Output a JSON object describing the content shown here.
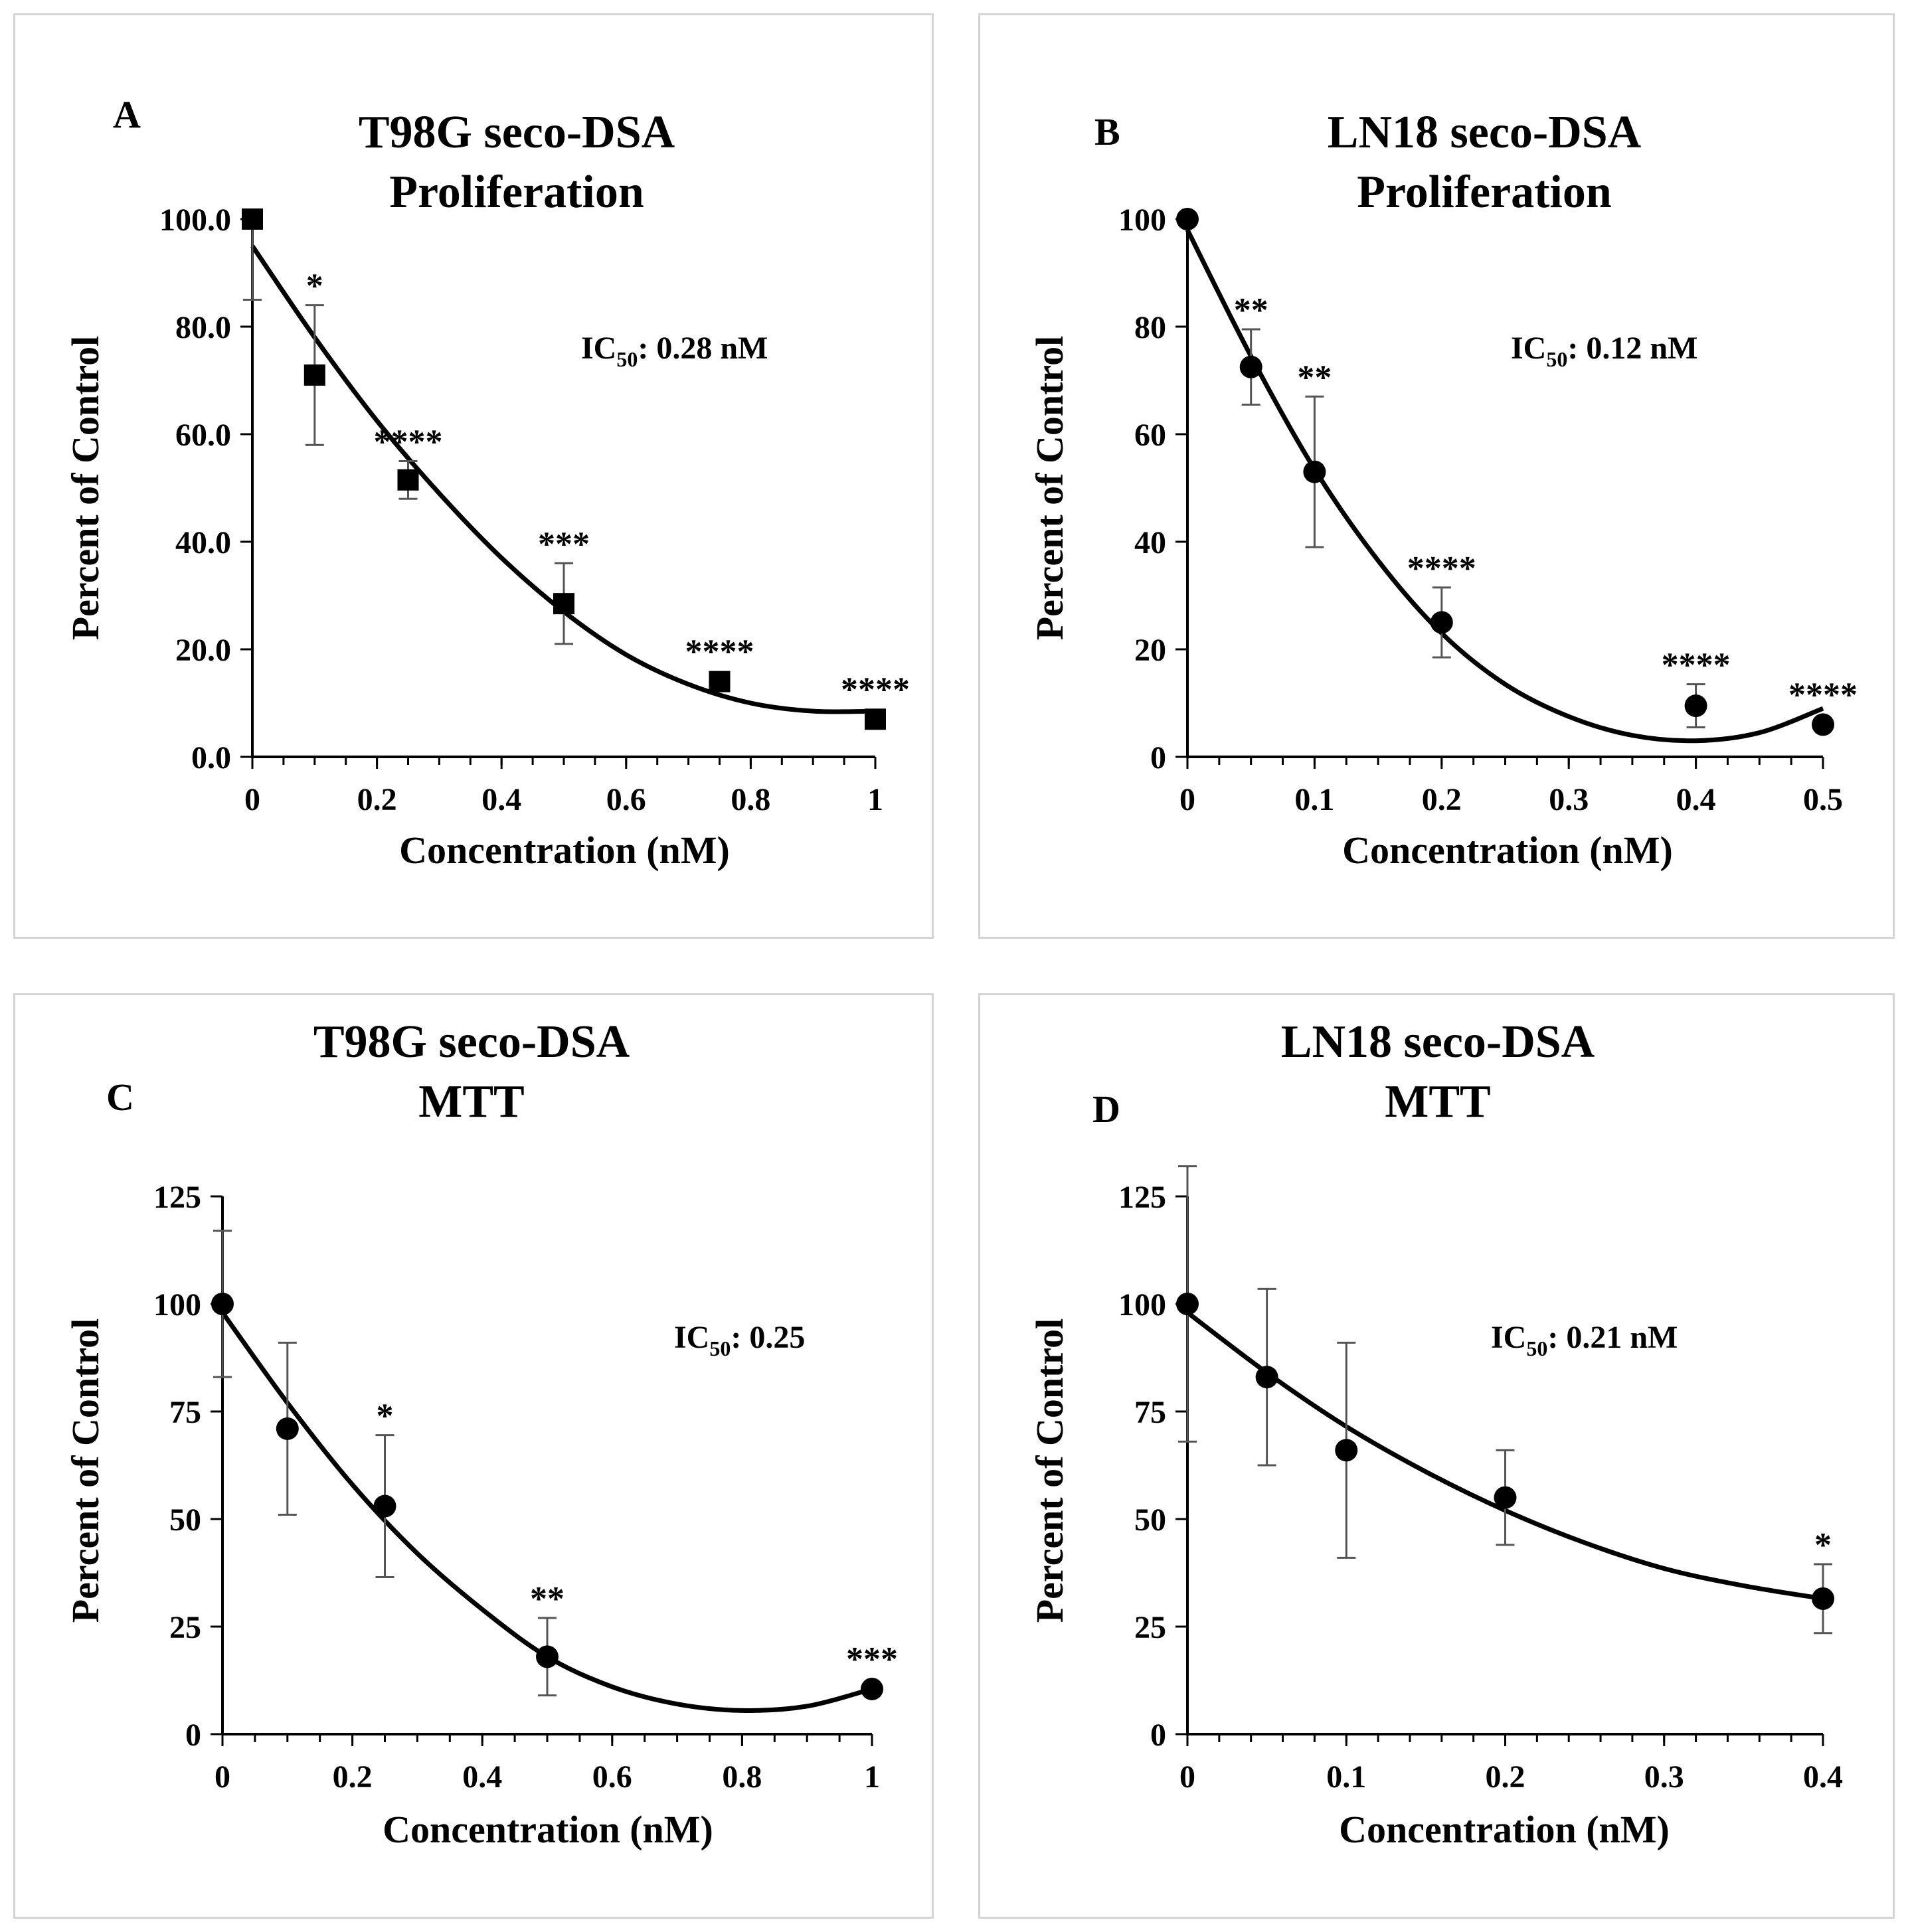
{
  "chart_data": [
    {
      "type": "scatter",
      "panel_label": "A",
      "title_line1": "T98G seco-DSA",
      "title_line2": "Proliferation",
      "xlabel": "Concentration  (nM)",
      "ylabel": "Percent  of Control",
      "ic50": {
        "prefix": "IC",
        "sub": "50",
        "value": ": 0.28 nM"
      },
      "marker": "square",
      "xlim": [
        0,
        1
      ],
      "ylim": [
        0,
        100
      ],
      "x_ticks": [
        "0",
        "0.2",
        "0.4",
        "0.6",
        "0.8",
        "1"
      ],
      "x_tick_values": [
        0,
        0.2,
        0.4,
        0.6,
        0.8,
        1
      ],
      "y_ticks": [
        "0.0",
        "20.0",
        "40.0",
        "60.0",
        "80.0",
        "100.0"
      ],
      "y_tick_values": [
        0,
        20,
        40,
        60,
        80,
        100
      ],
      "x_minor_step": 0.05,
      "points": [
        {
          "x": 0,
          "y": 100,
          "err_up": 0,
          "err_down": 15,
          "sig": ""
        },
        {
          "x": 0.1,
          "y": 71,
          "err_up": 13,
          "err_down": 13,
          "sig": "*"
        },
        {
          "x": 0.25,
          "y": 51.5,
          "err_up": 3.5,
          "err_down": 3.5,
          "sig": "****"
        },
        {
          "x": 0.5,
          "y": 28.5,
          "err_up": 7.5,
          "err_down": 7.5,
          "sig": "***"
        },
        {
          "x": 0.75,
          "y": 14,
          "err_up": 0,
          "err_down": 0,
          "sig": "****"
        },
        {
          "x": 1,
          "y": 7,
          "err_up": 0,
          "err_down": 0,
          "sig": "****"
        }
      ],
      "fit": [
        [
          0,
          95
        ],
        [
          0.1,
          78
        ],
        [
          0.2,
          62.5
        ],
        [
          0.3,
          49
        ],
        [
          0.4,
          37
        ],
        [
          0.5,
          27
        ],
        [
          0.6,
          19
        ],
        [
          0.7,
          13.5
        ],
        [
          0.8,
          10
        ],
        [
          0.9,
          8.5
        ],
        [
          1,
          8.5
        ]
      ]
    },
    {
      "type": "scatter",
      "panel_label": "B",
      "title_line1": "LN18 seco-DSA",
      "title_line2": "Proliferation",
      "xlabel": "Concentration  (nM)",
      "ylabel": "Percent  of Control",
      "ic50": {
        "prefix": "IC",
        "sub": "50",
        "value": ": 0.12 nM"
      },
      "marker": "circle",
      "xlim": [
        0,
        0.5
      ],
      "ylim": [
        0,
        100
      ],
      "x_ticks": [
        "0",
        "0.1",
        "0.2",
        "0.3",
        "0.4",
        "0.5"
      ],
      "x_tick_values": [
        0,
        0.1,
        0.2,
        0.3,
        0.4,
        0.5
      ],
      "y_ticks": [
        "0",
        "20",
        "40",
        "60",
        "80",
        "100"
      ],
      "y_tick_values": [
        0,
        20,
        40,
        60,
        80,
        100
      ],
      "x_minor_step": 0.025,
      "points": [
        {
          "x": 0,
          "y": 100,
          "err_up": 0,
          "err_down": 0,
          "sig": ""
        },
        {
          "x": 0.05,
          "y": 72.5,
          "err_up": 7,
          "err_down": 7,
          "sig": "**"
        },
        {
          "x": 0.1,
          "y": 53,
          "err_up": 14,
          "err_down": 14,
          "sig": "**"
        },
        {
          "x": 0.2,
          "y": 25,
          "err_up": 6.5,
          "err_down": 6.5,
          "sig": "****"
        },
        {
          "x": 0.4,
          "y": 9.5,
          "err_up": 4,
          "err_down": 4,
          "sig": "****"
        },
        {
          "x": 0.5,
          "y": 6,
          "err_up": 0,
          "err_down": 0,
          "sig": "****"
        }
      ],
      "fit": [
        [
          0,
          98
        ],
        [
          0.05,
          74.5
        ],
        [
          0.1,
          53.5
        ],
        [
          0.15,
          36.5
        ],
        [
          0.2,
          23
        ],
        [
          0.25,
          13.5
        ],
        [
          0.3,
          7.5
        ],
        [
          0.35,
          4
        ],
        [
          0.4,
          3
        ],
        [
          0.45,
          4.5
        ],
        [
          0.5,
          9
        ]
      ]
    },
    {
      "type": "scatter",
      "panel_label": "C",
      "title_line1": "T98G seco-DSA",
      "title_line2": "MTT",
      "xlabel": "Concentration  (nM)",
      "ylabel": "Percent  of Control",
      "ic50": {
        "prefix": "IC",
        "sub": "50",
        "value": ": 0.25"
      },
      "marker": "circle",
      "xlim": [
        0,
        1
      ],
      "ylim": [
        0,
        125
      ],
      "x_ticks": [
        "0",
        "0.2",
        "0.4",
        "0.6",
        "0.8",
        "1"
      ],
      "x_tick_values": [
        0,
        0.2,
        0.4,
        0.6,
        0.8,
        1
      ],
      "y_ticks": [
        "0",
        "25",
        "50",
        "75",
        "100",
        "125"
      ],
      "y_tick_values": [
        0,
        25,
        50,
        75,
        100,
        125
      ],
      "x_minor_step": 0.05,
      "points": [
        {
          "x": 0,
          "y": 100,
          "err_up": 17,
          "err_down": 17,
          "sig": ""
        },
        {
          "x": 0.1,
          "y": 71,
          "err_up": 20,
          "err_down": 20,
          "sig": ""
        },
        {
          "x": 0.25,
          "y": 53,
          "err_up": 16.5,
          "err_down": 16.5,
          "sig": "*"
        },
        {
          "x": 0.5,
          "y": 18,
          "err_up": 9,
          "err_down": 9,
          "sig": "**"
        },
        {
          "x": 1,
          "y": 10.5,
          "err_up": 0,
          "err_down": 0,
          "sig": "***"
        }
      ],
      "fit": [
        [
          0,
          98
        ],
        [
          0.1,
          77
        ],
        [
          0.2,
          58
        ],
        [
          0.3,
          42
        ],
        [
          0.4,
          29
        ],
        [
          0.5,
          18
        ],
        [
          0.6,
          11
        ],
        [
          0.7,
          7
        ],
        [
          0.8,
          5.5
        ],
        [
          0.9,
          6.5
        ],
        [
          1,
          10.5
        ]
      ]
    },
    {
      "type": "scatter",
      "panel_label": "D",
      "title_line1": "LN18 seco-DSA",
      "title_line2": "MTT",
      "xlabel": "Concentration  (nM)",
      "ylabel": "Percent  of Control",
      "ic50": {
        "prefix": "IC",
        "sub": "50",
        "value": ": 0.21 nM"
      },
      "marker": "circle",
      "xlim": [
        0,
        0.4
      ],
      "ylim": [
        0,
        125
      ],
      "x_ticks": [
        "0",
        "0.1",
        "0.2",
        "0.3",
        "0.4"
      ],
      "x_tick_values": [
        0,
        0.1,
        0.2,
        0.3,
        0.4
      ],
      "y_ticks": [
        "0",
        "25",
        "50",
        "75",
        "100",
        "125"
      ],
      "y_tick_values": [
        0,
        25,
        50,
        75,
        100,
        125
      ],
      "x_minor_step": 0.02,
      "points": [
        {
          "x": 0,
          "y": 100,
          "err_up": 32,
          "err_down": 32,
          "sig": ""
        },
        {
          "x": 0.05,
          "y": 83,
          "err_up": 20.5,
          "err_down": 20.5,
          "sig": ""
        },
        {
          "x": 0.1,
          "y": 66,
          "err_up": 25,
          "err_down": 25,
          "sig": ""
        },
        {
          "x": 0.2,
          "y": 55,
          "err_up": 11,
          "err_down": 11,
          "sig": ""
        },
        {
          "x": 0.4,
          "y": 31.5,
          "err_up": 8,
          "err_down": 8,
          "sig": "*"
        }
      ],
      "fit": [
        [
          0,
          98
        ],
        [
          0.05,
          84
        ],
        [
          0.1,
          71.5
        ],
        [
          0.15,
          61
        ],
        [
          0.2,
          52
        ],
        [
          0.25,
          44.5
        ],
        [
          0.3,
          38.5
        ],
        [
          0.35,
          34.5
        ],
        [
          0.4,
          31.5
        ]
      ]
    }
  ]
}
